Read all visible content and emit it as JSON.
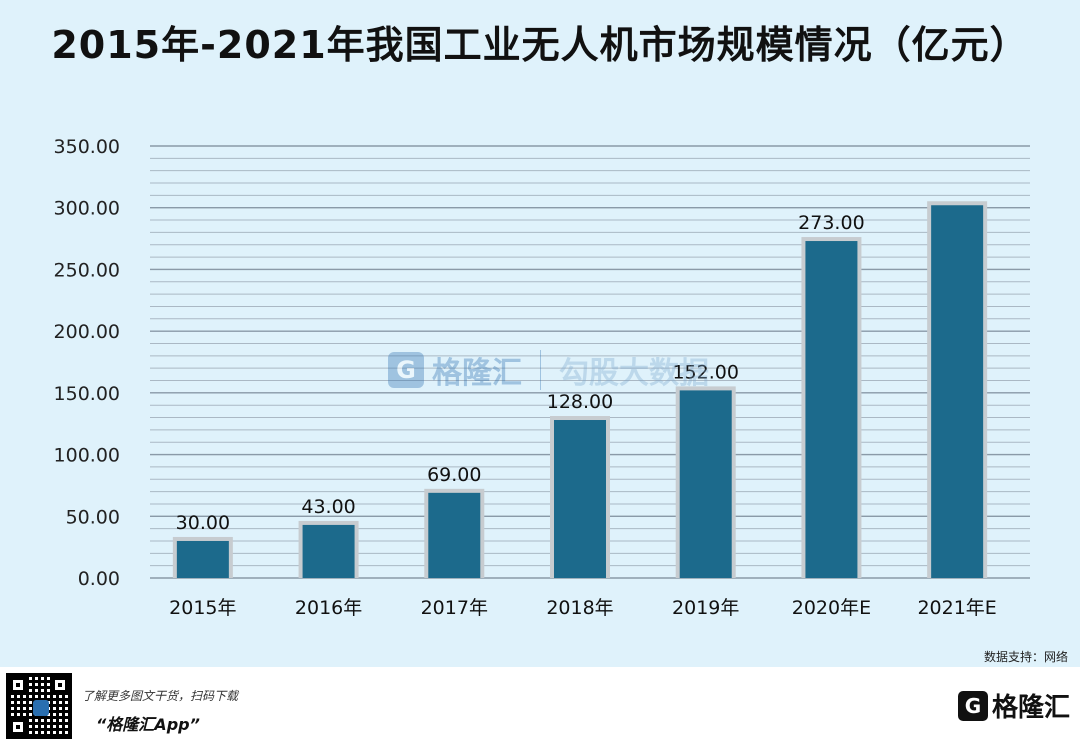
{
  "title": "2015年-2021年我国工业无人机市场规模情况（亿元）",
  "chart_data": {
    "type": "bar",
    "categories": [
      "2015年",
      "2016年",
      "2017年",
      "2018年",
      "2019年",
      "2020年E",
      "2021年E"
    ],
    "values": [
      30.0,
      43.0,
      69.0,
      128.0,
      152.0,
      273.0,
      302.0
    ],
    "data_labels": [
      "30.00",
      "43.00",
      "69.00",
      "128.00",
      "152.00",
      "273.00",
      ""
    ],
    "yticks": [
      "0.00",
      "50.00",
      "100.00",
      "150.00",
      "200.00",
      "250.00",
      "300.00",
      "350.00"
    ],
    "ylim": [
      0,
      350
    ],
    "grid": "horizontal",
    "bar_color": "#1c6a8c",
    "title": "2015年-2021年我国工业无人机市场规模情况（亿元）"
  },
  "watermark": {
    "brand": "格隆汇",
    "brand_url": "www.gelonghui.com",
    "data_brand": "勾股大数据",
    "data_url": "www.gogudata.com"
  },
  "source_text": "数据支持：网络",
  "footer": {
    "promo_text": "了解更多图文干货，扫码下载",
    "app_name": "“格隆汇App”",
    "brand_icon": "G",
    "brand_name": "格隆汇"
  }
}
